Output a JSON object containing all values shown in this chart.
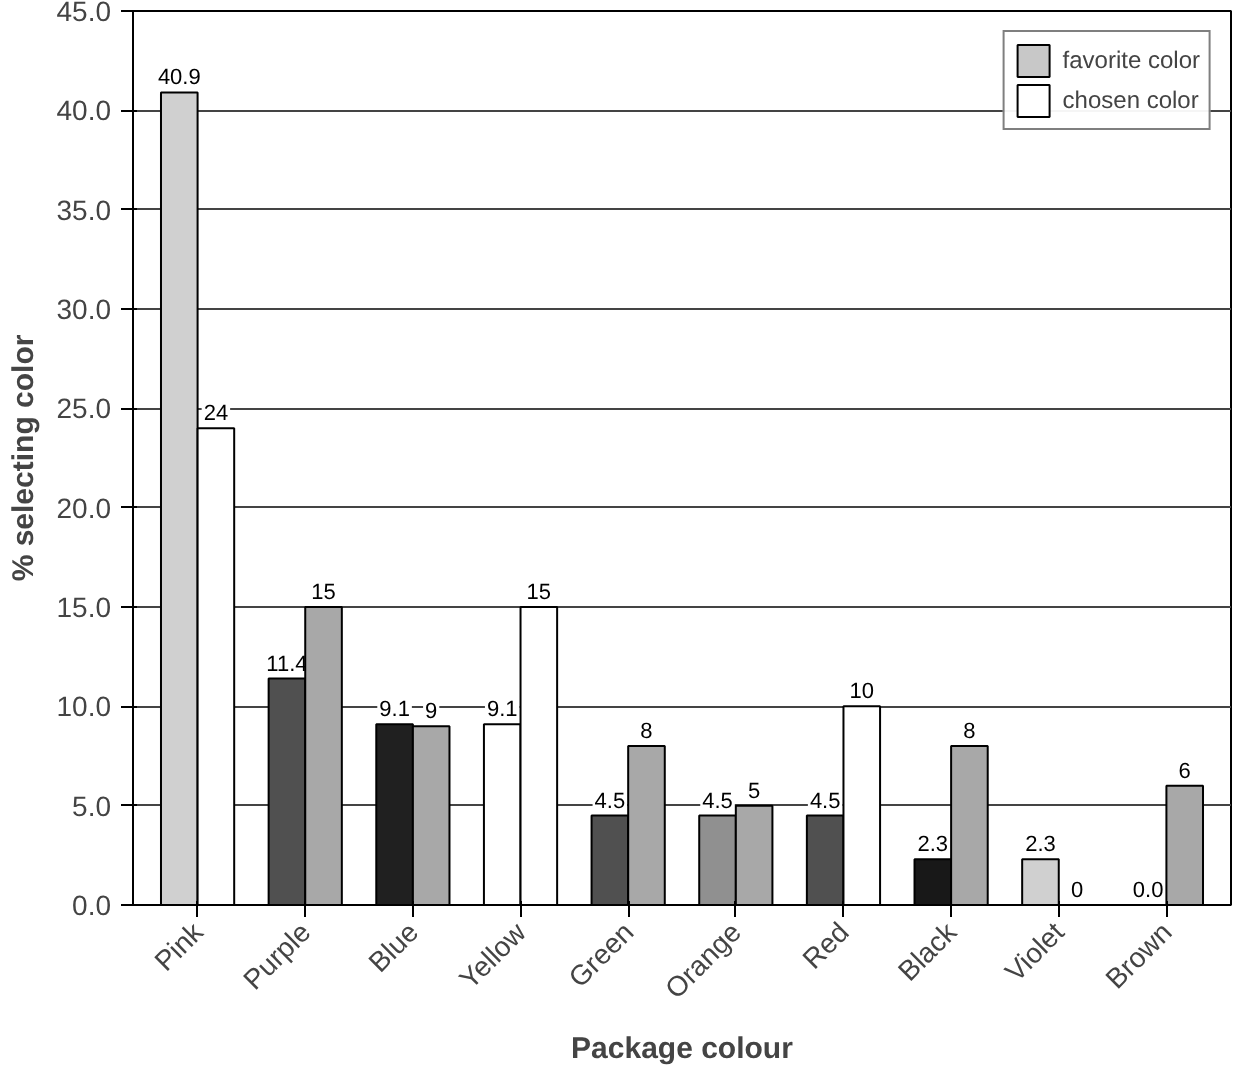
{
  "chart_data": {
    "type": "bar",
    "xlabel": "Package colour",
    "ylabel": "% selecting color",
    "categories": [
      "Pink",
      "Purple",
      "Blue",
      "Yellow",
      "Green",
      "Orange",
      "Red",
      "Black",
      "Violet",
      "Brown"
    ],
    "series": [
      {
        "name": "favorite color",
        "color": "#c8c8c8",
        "colors": [
          "#d0d0d0",
          "#505050",
          "#202020",
          "#ffffff",
          "#505050",
          "#909090",
          "#505050",
          "#181818",
          "#d0d0d0",
          "#000000"
        ],
        "values": [
          40.9,
          11.4,
          9.1,
          9.1,
          4.5,
          4.5,
          4.5,
          2.3,
          2.3,
          0.0
        ],
        "value_labels": [
          "40.9",
          "11.4",
          "9.1",
          "9.1",
          "4.5",
          "4.5",
          "4.5",
          "2.3",
          "2.3",
          "0.0"
        ]
      },
      {
        "name": "chosen color",
        "color": "#ffffff",
        "colors": [
          "#ffffff",
          "#a8a8a8",
          "#a8a8a8",
          "#ffffff",
          "#a8a8a8",
          "#a8a8a8",
          "#ffffff",
          "#a8a8a8",
          "#000000",
          "#a8a8a8"
        ],
        "values": [
          24,
          15,
          9,
          15,
          8,
          5,
          10,
          8,
          0,
          6
        ],
        "value_labels": [
          "24",
          "15",
          "9",
          "15",
          "8",
          "5",
          "10",
          "8",
          "0",
          "6"
        ]
      }
    ],
    "ylim": [
      0,
      45
    ],
    "yticks": [
      {
        "value": 0,
        "label": "0.0"
      },
      {
        "value": 5,
        "label": "5.0"
      },
      {
        "value": 10,
        "label": "10.0"
      },
      {
        "value": 15,
        "label": "15.0"
      },
      {
        "value": 20,
        "label": "20.0"
      },
      {
        "value": 25,
        "label": "25.0"
      },
      {
        "value": 30,
        "label": "30.0"
      },
      {
        "value": 35,
        "label": "35.0"
      },
      {
        "value": 40,
        "label": "40.0"
      },
      {
        "value": 45,
        "label": "45.0"
      }
    ],
    "grid": "y",
    "legend": "top right"
  }
}
